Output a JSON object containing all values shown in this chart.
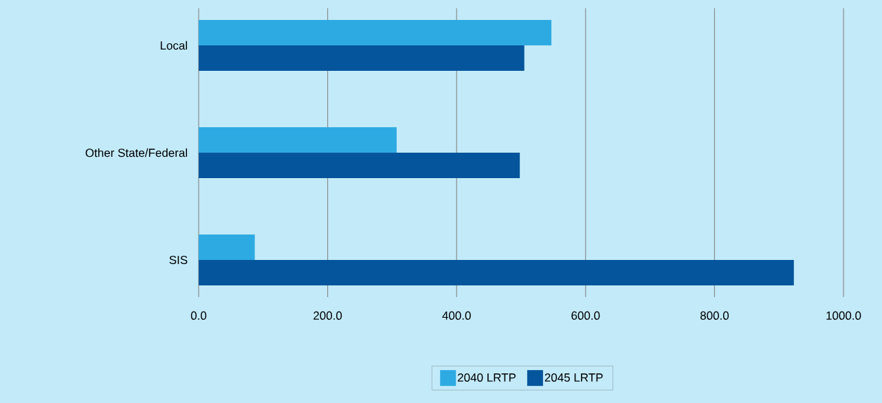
{
  "chart_data": {
    "type": "bar",
    "orientation": "horizontal",
    "categories": [
      "Local",
      "Other State/Federal",
      "SIS"
    ],
    "series": [
      {
        "name": "2040 LRTP",
        "color": "#2eaae2",
        "values": [
          547,
          307,
          87
        ]
      },
      {
        "name": "2045 LRTP",
        "color": "#04559c",
        "values": [
          505,
          498,
          923
        ]
      }
    ],
    "xlim": [
      0,
      1000
    ],
    "xticks": [
      {
        "value": 0,
        "label": "0.0"
      },
      {
        "value": 200,
        "label": "200.0"
      },
      {
        "value": 400,
        "label": "400.0"
      },
      {
        "value": 600,
        "label": "600.0"
      },
      {
        "value": 800,
        "label": "800.0"
      },
      {
        "value": 1000,
        "label": "1000.0"
      }
    ],
    "grid": "x",
    "legend": "bottom"
  }
}
